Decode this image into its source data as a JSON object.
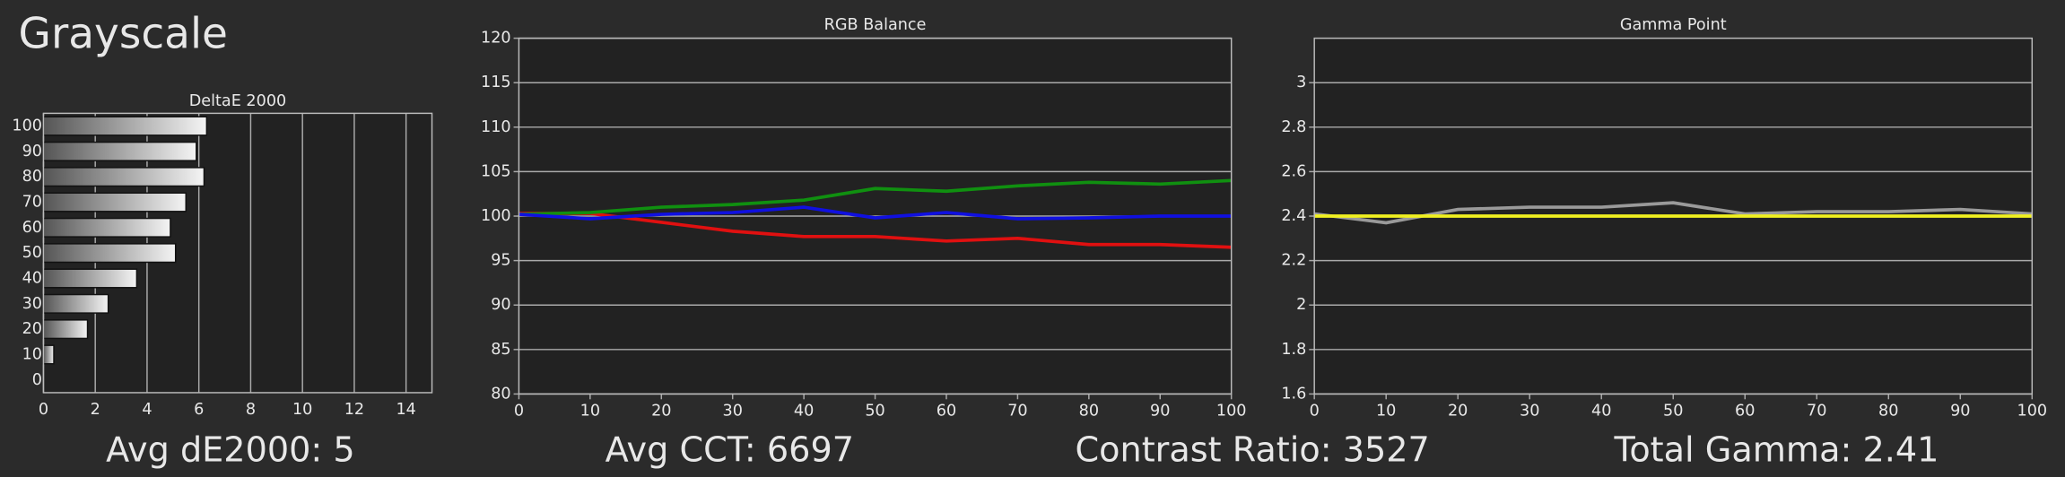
{
  "title": "Grayscale",
  "stats": [
    "Avg dE2000: 5",
    "Avg CCT: 6697",
    "Contrast Ratio: 3527",
    "Total Gamma: 2.41"
  ],
  "chart_data": [
    {
      "type": "bar",
      "orientation": "horizontal",
      "title": "DeltaE 2000",
      "categories": [
        "100",
        "90",
        "80",
        "70",
        "60",
        "50",
        "40",
        "30",
        "20",
        "10",
        "0"
      ],
      "values": [
        6.3,
        5.9,
        6.2,
        5.5,
        4.9,
        5.1,
        3.6,
        2.5,
        1.7,
        0.4,
        0
      ],
      "xlim": [
        0,
        15
      ],
      "xticks": [
        0,
        2,
        4,
        6,
        8,
        10,
        12,
        14
      ],
      "grid": true
    },
    {
      "type": "line",
      "title": "RGB Balance",
      "x": [
        0,
        10,
        20,
        30,
        40,
        50,
        60,
        70,
        80,
        90,
        100
      ],
      "series": [
        {
          "color": "#e01010",
          "values": [
            100.3,
            100.3,
            99.3,
            98.3,
            97.7,
            97.7,
            97.2,
            97.5,
            96.8,
            96.8,
            96.5
          ]
        },
        {
          "color": "#109010",
          "values": [
            100.2,
            100.4,
            101.0,
            101.3,
            101.8,
            103.1,
            102.8,
            103.4,
            103.8,
            103.6,
            104.0
          ]
        },
        {
          "color": "#1010e0",
          "values": [
            100.2,
            99.7,
            100.2,
            100.4,
            101.0,
            99.8,
            100.4,
            99.7,
            99.8,
            100.0,
            100.0
          ]
        }
      ],
      "xlim": [
        0,
        100
      ],
      "xticks": [
        0,
        10,
        20,
        30,
        40,
        50,
        60,
        70,
        80,
        90,
        100
      ],
      "ylim": [
        80,
        120
      ],
      "yticks": [
        80,
        85,
        90,
        95,
        100,
        105,
        110,
        115,
        120
      ],
      "grid": true
    },
    {
      "type": "line",
      "title": "Gamma Point",
      "x": [
        0,
        10,
        20,
        30,
        40,
        50,
        60,
        70,
        80,
        90,
        100
      ],
      "series": [
        {
          "color": "#9a9a9a",
          "values": [
            2.41,
            2.37,
            2.43,
            2.44,
            2.44,
            2.46,
            2.41,
            2.42,
            2.42,
            2.43,
            2.41
          ]
        },
        {
          "color": "#f0f020",
          "values": [
            2.4,
            2.4,
            2.4,
            2.4,
            2.4,
            2.4,
            2.4,
            2.4,
            2.4,
            2.4,
            2.4
          ]
        }
      ],
      "xlim": [
        0,
        100
      ],
      "xticks": [
        0,
        10,
        20,
        30,
        40,
        50,
        60,
        70,
        80,
        90,
        100
      ],
      "ylim": [
        1.6,
        3.2
      ],
      "yticks": [
        1.6,
        1.8,
        2,
        2.2,
        2.4,
        2.6,
        2.8,
        3
      ],
      "grid": true
    }
  ]
}
